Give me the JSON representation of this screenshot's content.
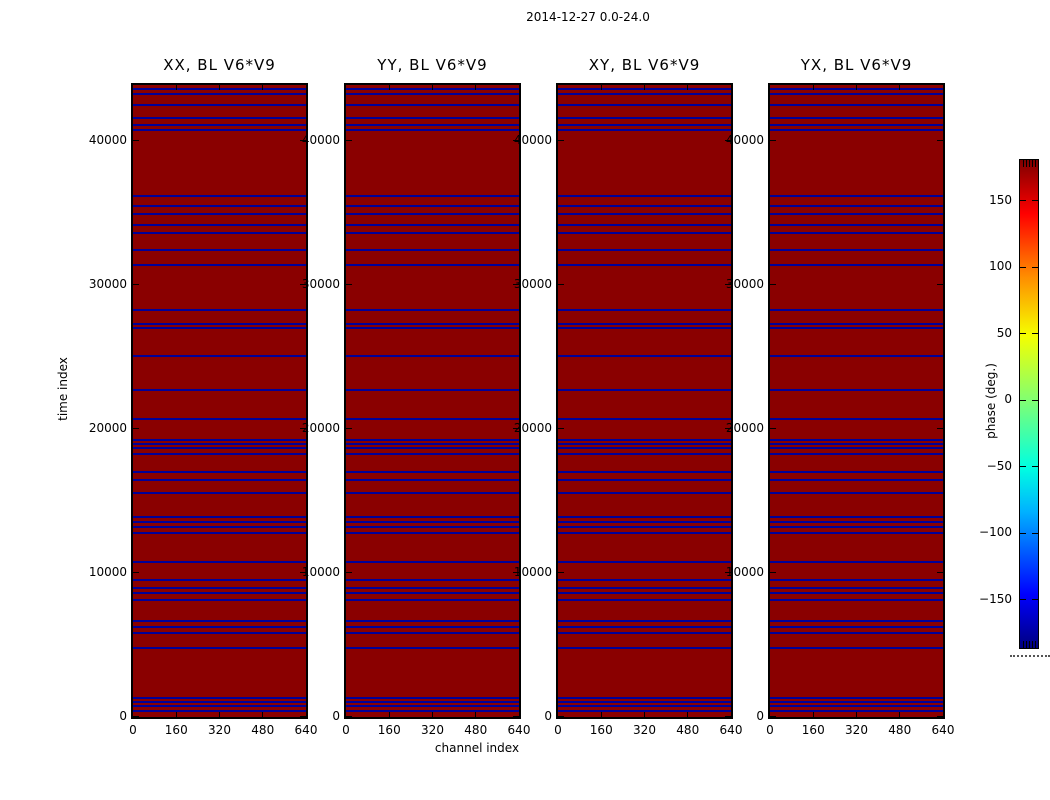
{
  "chart_data": {
    "type": "heatmap",
    "title": "2014-12-27 0.0-24.0",
    "panels": [
      "XX, BL V6*V9",
      "YY, BL V6*V9",
      "XY, BL V6*V9",
      "YX, BL V6*V9"
    ],
    "xlabel": "channel index",
    "ylabel": "time index",
    "x_ticks": [
      0,
      160,
      320,
      480,
      640
    ],
    "y_ticks": [
      0,
      10000,
      20000,
      30000,
      40000
    ],
    "x_range": [
      0,
      640
    ],
    "y_range": [
      0,
      43900
    ],
    "background_phase_deg": 180,
    "colors": {
      "background_phase": "#8a0000",
      "flagged_row_stripe": "#000099",
      "frame": "#000000"
    },
    "stripe_rows_time_index": [
      43580,
      43270,
      42500,
      41600,
      41100,
      40800,
      36200,
      35500,
      34900,
      34200,
      33600,
      32400,
      31400,
      28260,
      27300,
      27050,
      25100,
      22700,
      20700,
      19230,
      18950,
      18670,
      18250,
      17000,
      16450,
      15550,
      13900,
      13550,
      13200,
      12780,
      10760,
      9500,
      8950,
      8600,
      8100,
      6670,
      6250,
      5830,
      4790,
      1320,
      1040,
      760,
      420
    ],
    "colorbar": {
      "label": "phase (deg.)",
      "ticks": [
        150,
        100,
        50,
        0,
        -50,
        -100,
        -150
      ],
      "range": [
        -180,
        180
      ],
      "colormap": "jet"
    }
  }
}
